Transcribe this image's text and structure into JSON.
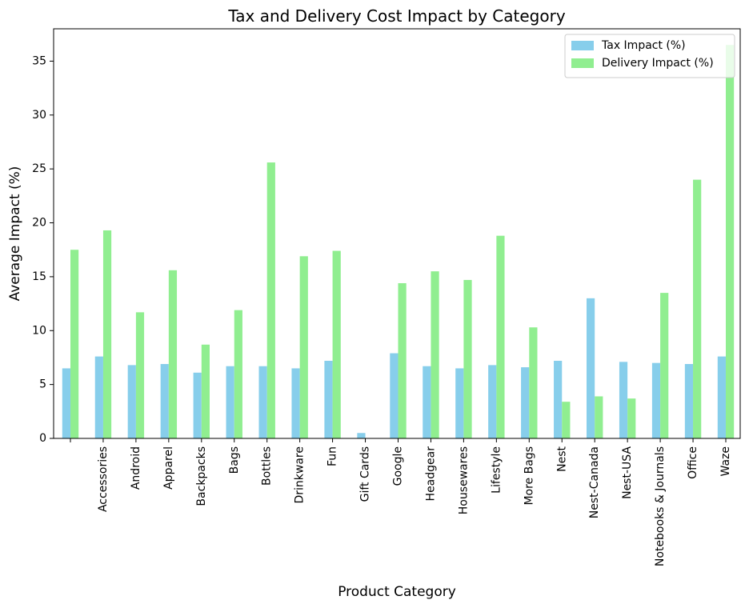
{
  "chart_data": {
    "type": "bar",
    "title": "Tax and Delivery Cost Impact by Category",
    "xlabel": "Product Category",
    "ylabel": "Average Impact (%)",
    "ylim": [
      0,
      38
    ],
    "yticks": [
      0,
      5,
      10,
      15,
      20,
      25,
      30,
      35
    ],
    "categories": [
      "",
      "Accessories",
      "Android",
      "Apparel",
      "Backpacks",
      "Bags",
      "Bottles",
      "Drinkware",
      "Fun",
      "Gift Cards",
      "Google",
      "Headgear",
      "Housewares",
      "Lifestyle",
      "More Bags",
      "Nest",
      "Nest-Canada",
      "Nest-USA",
      "Notebooks & Journals",
      "Office",
      "Waze"
    ],
    "series": [
      {
        "name": "Tax Impact (%)",
        "color": "#87ceeb",
        "values": [
          6.5,
          7.6,
          6.8,
          6.9,
          6.1,
          6.7,
          6.7,
          6.5,
          7.2,
          0.5,
          7.9,
          6.7,
          6.5,
          6.8,
          6.6,
          7.2,
          13.0,
          7.1,
          7.0,
          6.9,
          7.6
        ]
      },
      {
        "name": "Delivery Impact (%)",
        "color": "#90ee90",
        "values": [
          17.5,
          19.3,
          11.7,
          15.6,
          8.7,
          11.9,
          25.6,
          16.9,
          17.4,
          0,
          14.4,
          15.5,
          14.7,
          18.8,
          10.3,
          3.4,
          3.9,
          3.7,
          13.5,
          24.0,
          36.5
        ]
      }
    ],
    "legend_position": "top-right",
    "grid": false
  }
}
